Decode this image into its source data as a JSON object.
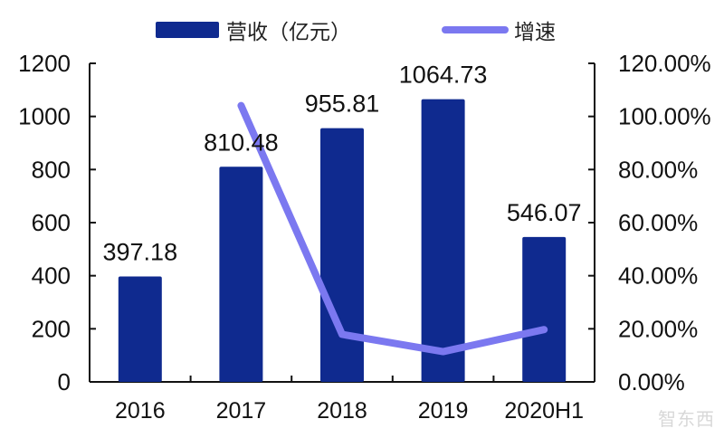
{
  "legend": {
    "bar_label": "营收（亿元）",
    "line_label": "增速"
  },
  "colors": {
    "bar": "#0F2A8F",
    "line": "#7B78F0",
    "axis": "#111111"
  },
  "watermark": "智东西",
  "chart_data": {
    "type": "bar",
    "combo": "bar+line (dual axis)",
    "title": "",
    "categories": [
      "2016",
      "2017",
      "2018",
      "2019",
      "2020H1"
    ],
    "series": [
      {
        "name": "营收（亿元）",
        "type": "bar",
        "axis": "left",
        "values": [
          397.18,
          810.48,
          955.81,
          1064.73,
          546.07
        ],
        "data_labels": [
          "397.18",
          "810.48",
          "955.81",
          "1064.73",
          "546.07"
        ]
      },
      {
        "name": "增速",
        "type": "line",
        "axis": "right",
        "values": [
          null,
          104.1,
          17.9,
          11.4,
          19.7
        ],
        "unit": "%"
      }
    ],
    "left_axis": {
      "ylim": [
        0,
        1200
      ],
      "ticks": [
        "0",
        "200",
        "400",
        "600",
        "800",
        "1000",
        "1200"
      ]
    },
    "right_axis": {
      "ylim": [
        0,
        120
      ],
      "ticks": [
        "0.00%",
        "20.00%",
        "40.00%",
        "60.00%",
        "80.00%",
        "100.00%",
        "120.00%"
      ]
    },
    "xlabel": "",
    "ylabel": "",
    "grid": false,
    "legend_position": "top"
  }
}
